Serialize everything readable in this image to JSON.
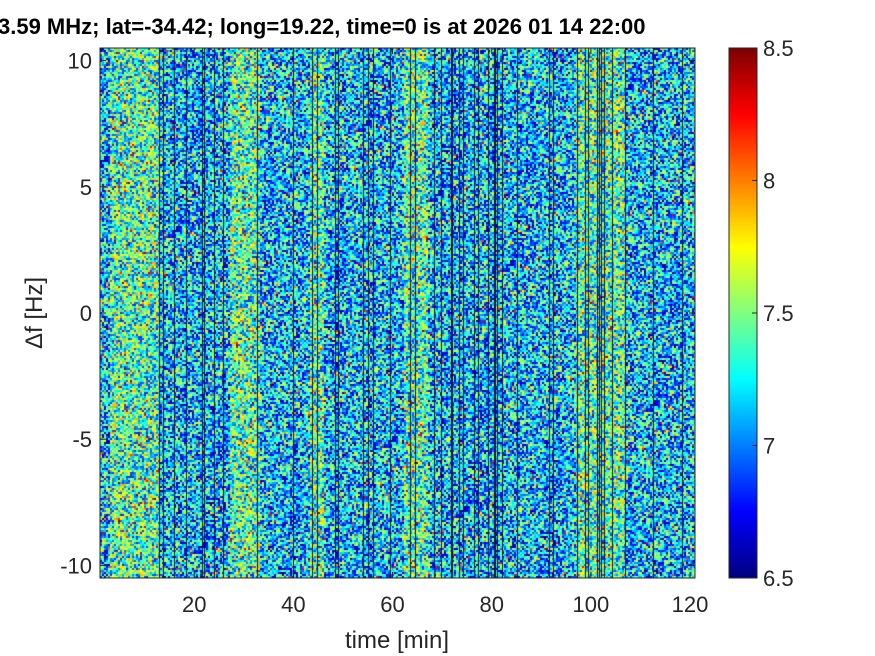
{
  "chart_data": {
    "type": "heatmap",
    "title": "3.59 MHz;  lat=-34.42; long=19.22, time=0 is at 2026 01 14 22:00",
    "xlabel": "time [min]",
    "ylabel": "Δf [Hz]",
    "xlim": [
      1,
      121
    ],
    "ylim": [
      -10.5,
      10.5
    ],
    "xticks": [
      20,
      40,
      60,
      80,
      100,
      120
    ],
    "yticks": [
      -10,
      -5,
      0,
      5,
      10
    ],
    "colorbar": {
      "range": [
        6.5,
        8.5
      ],
      "ticks": [
        "6.5",
        "7",
        "7.5",
        "8",
        "8.5"
      ],
      "colormap": "jet"
    },
    "grid": false,
    "brighter_bands_min": [
      [
        3,
        13
      ],
      [
        27,
        33
      ],
      [
        43,
        46
      ],
      [
        62,
        67
      ],
      [
        97,
        107
      ]
    ],
    "dark_gap_lines": "many thin vertical dark gaps throughout (missing data)"
  }
}
